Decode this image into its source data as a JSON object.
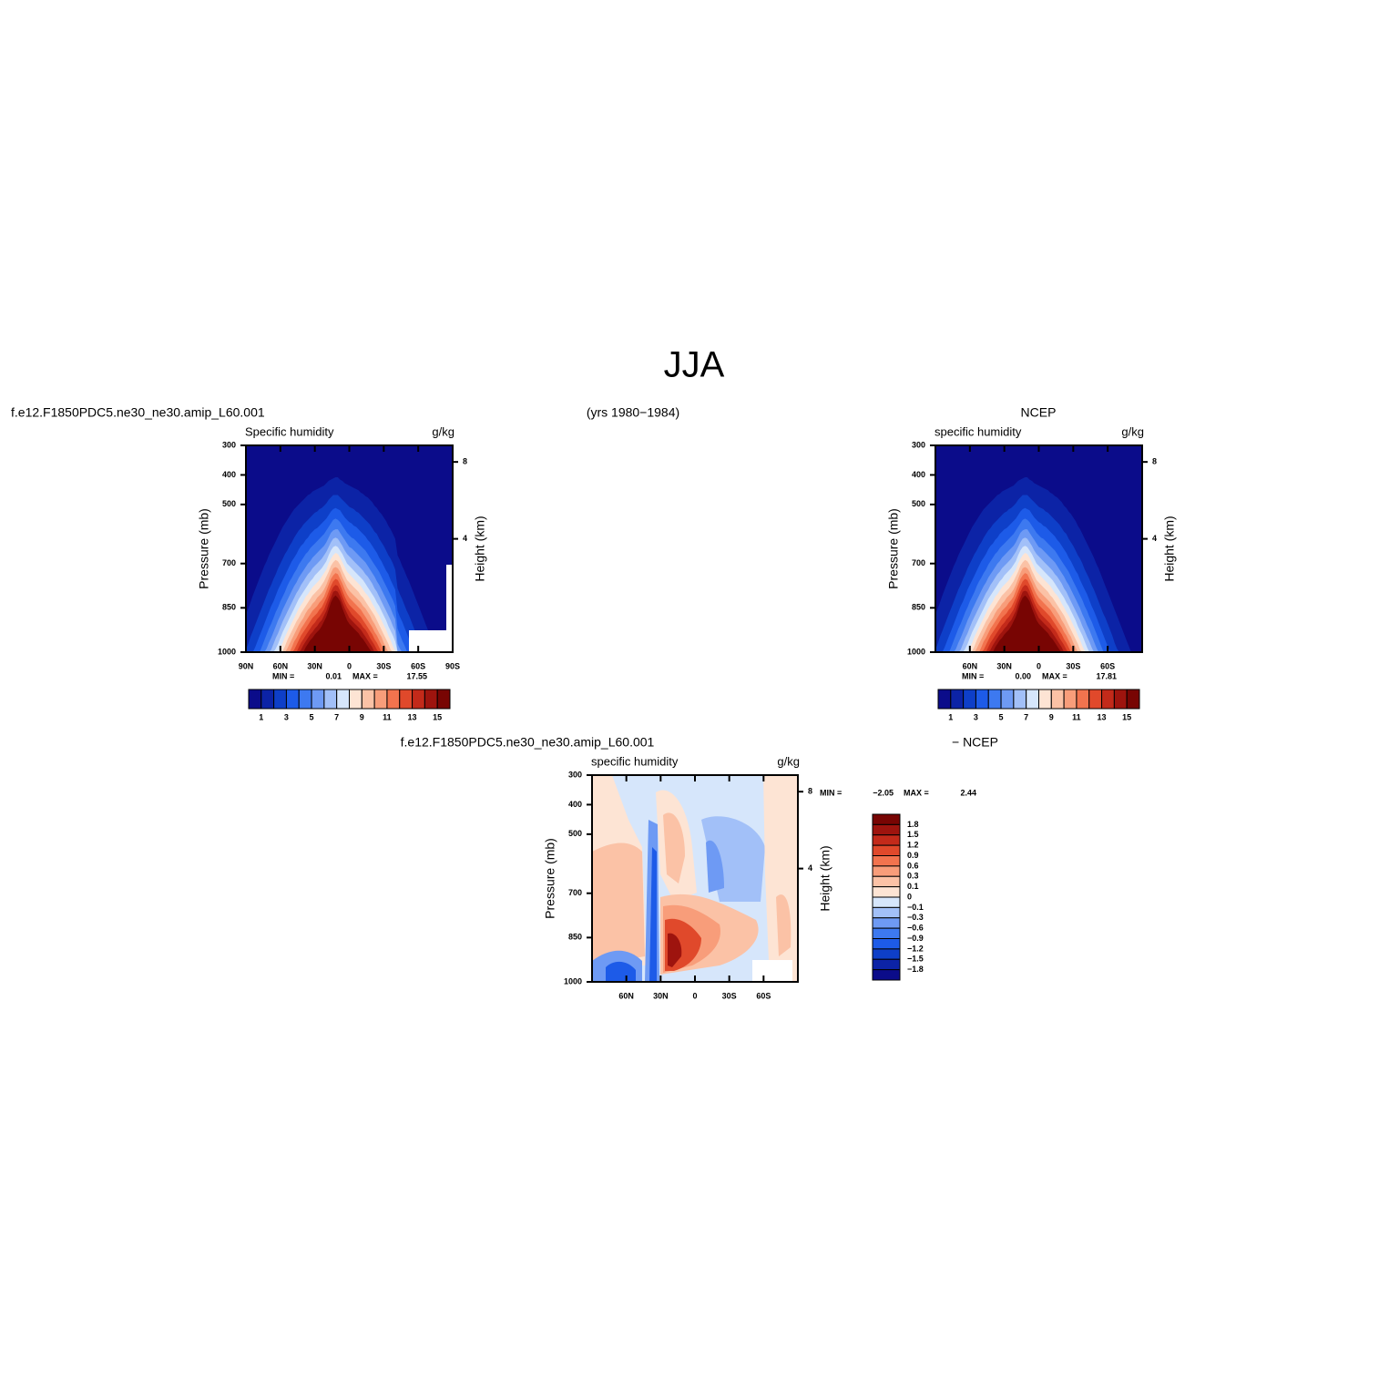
{
  "title": "JJA",
  "period": "(yrs 1980−1984)",
  "colors": [
    "#0b0c8a",
    "#0c23a6",
    "#0e3fc8",
    "#1d5be8",
    "#3d79f0",
    "#6e9af4",
    "#a2c0f8",
    "#d6e6fb",
    "#fde4d4",
    "#fbc2a6",
    "#f89d7a",
    "#f2734e",
    "#e0492b",
    "#c32a1a",
    "#9e140e",
    "#780503"
  ],
  "panels": [
    {
      "case": "f.e12.F1850PDC5.ne30_ne30.amip_L60.001",
      "variable": "Specific humidity",
      "units": "g/kg",
      "ylabel": "Pressure (mb)",
      "y2label": "Height (km)",
      "ylim": [
        300,
        1000
      ],
      "yticks": [
        300,
        400,
        500,
        700,
        850,
        1000
      ],
      "y2ticks": [
        8,
        4
      ],
      "xlim": [
        90,
        -90
      ],
      "xticks": [
        {
          "value": 90,
          "label": "90N"
        },
        {
          "value": 60,
          "label": "60N"
        },
        {
          "value": 30,
          "label": "30N"
        },
        0,
        {
          "value": -30,
          "label": "30S"
        },
        {
          "value": -60,
          "label": "60S"
        },
        {
          "value": -90,
          "label": "90S"
        }
      ],
      "min_label": "MIN =",
      "min": 0.01,
      "max_label": "MAX =",
      "max": 17.55,
      "levels": [
        1,
        3,
        5,
        7,
        9,
        11,
        13,
        15
      ]
    },
    {
      "case": "NCEP",
      "variable": "specific humidity",
      "units": "g/kg",
      "ylabel": "Pressure (mb)",
      "y2label": "Height (km)",
      "ylim": [
        300,
        1000
      ],
      "yticks": [
        300,
        400,
        500,
        700,
        850,
        1000
      ],
      "y2ticks": [
        8,
        4
      ],
      "xlim": [
        90,
        -90
      ],
      "xticks": [
        {
          "value": 60,
          "label": "60N"
        },
        {
          "value": 30,
          "label": "30N"
        },
        0,
        {
          "value": -30,
          "label": "30S"
        },
        {
          "value": -60,
          "label": "60S"
        }
      ],
      "min_label": "MIN =",
      "min": {
        "value": 0,
        "label": "0.00"
      },
      "max_label": "MAX =",
      "max": 17.81,
      "levels": [
        1,
        3,
        5,
        7,
        9,
        11,
        13,
        15
      ]
    },
    {
      "case": "f.e12.F1850PDC5.ne30_ne30.amip_L60.001",
      "case2": "− NCEP",
      "variable": "specific humidity",
      "units": "g/kg",
      "ylabel": "Pressure (mb)",
      "y2label": "Height (km)",
      "ylim": [
        300,
        1000
      ],
      "yticks": [
        300,
        400,
        500,
        700,
        850,
        1000
      ],
      "y2ticks": [
        8,
        4
      ],
      "xlim": [
        90,
        -90
      ],
      "xticks": [
        {
          "value": 60,
          "label": "60N"
        },
        {
          "value": 30,
          "label": "30N"
        },
        0,
        {
          "value": -30,
          "label": "30S"
        },
        {
          "value": -60,
          "label": "60S"
        }
      ],
      "min_label": "MIN =",
      "min": {
        "value": -2.05,
        "label": "−2.05"
      },
      "max_label": "MAX =",
      "max": 2.44,
      "levels": [
        1.8,
        1.5,
        1.2,
        0.9,
        0.6,
        0.3,
        0.1,
        0,
        {
          "value": -0.1,
          "label": "−0.1"
        },
        {
          "value": -0.3,
          "label": "−0.3"
        },
        {
          "value": -0.6,
          "label": "−0.6"
        },
        {
          "value": -0.9,
          "label": "−0.9"
        },
        {
          "value": -1.2,
          "label": "−1.2"
        },
        {
          "value": -1.5,
          "label": "−1.5"
        },
        {
          "value": -1.8,
          "label": "−1.8"
        }
      ]
    }
  ]
}
